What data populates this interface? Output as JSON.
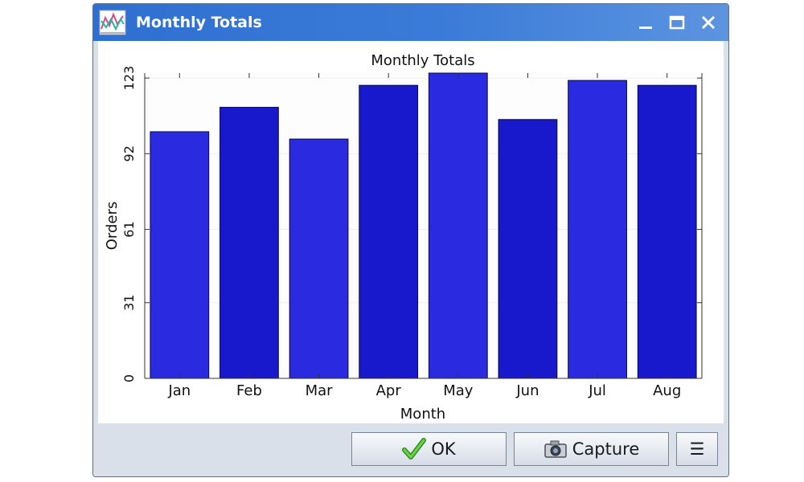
{
  "window": {
    "title": "Monthly Totals"
  },
  "icons": {
    "app": "chart-icon",
    "minimize": "minimize-icon",
    "maximize": "maximize-icon",
    "close": "close-icon",
    "ok": "checkmark-icon",
    "capture": "camera-icon",
    "menu": "hamburger-menu-icon"
  },
  "buttons": {
    "ok_label": "OK",
    "capture_label": "Capture",
    "menu_label": "☰"
  },
  "colors": {
    "bar_a": "#2a2be0",
    "bar_b": "#1818cc",
    "titlebar": "#2f6fd0"
  },
  "chart_data": {
    "type": "bar",
    "title": "Monthly Totals",
    "xlabel": "Month",
    "ylabel": "Orders",
    "categories": [
      "Jan",
      "Feb",
      "Mar",
      "Apr",
      "May",
      "Jun",
      "Jul",
      "Aug"
    ],
    "values": [
      101,
      111,
      98,
      120,
      125,
      106,
      122,
      120
    ],
    "ylim": [
      0,
      125
    ],
    "yticks": [
      0,
      31,
      61,
      92,
      123
    ],
    "grid": true,
    "legend": "none"
  }
}
